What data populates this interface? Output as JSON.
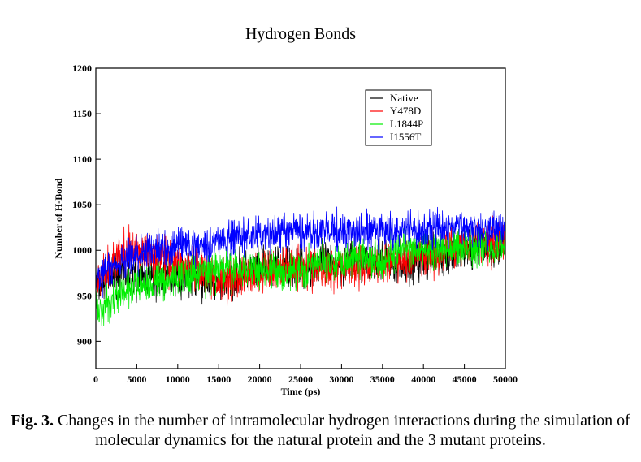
{
  "chart_data": {
    "type": "line",
    "title": "Hydrogen Bonds",
    "xlabel": "Time (ps)",
    "ylabel": "Number of H-Bond",
    "xlim": [
      0,
      50000
    ],
    "ylim": [
      870,
      1200
    ],
    "xticks": [
      0,
      5000,
      10000,
      15000,
      20000,
      25000,
      30000,
      35000,
      40000,
      45000,
      50000
    ],
    "yticks": [
      900,
      950,
      1000,
      1050,
      1100,
      1150,
      1200
    ],
    "legend_position": "top-right",
    "x": [
      0,
      2500,
      5000,
      7500,
      10000,
      12500,
      15000,
      17500,
      20000,
      22500,
      25000,
      27500,
      30000,
      32500,
      35000,
      37500,
      40000,
      42500,
      45000,
      47500,
      50000
    ],
    "series": [
      {
        "name": "Native",
        "color": "#000000",
        "values": [
          960,
          975,
          970,
          968,
          975,
          968,
          962,
          975,
          978,
          985,
          980,
          985,
          985,
          990,
          990,
          985,
          990,
          992,
          1000,
          1005,
          1005
        ]
      },
      {
        "name": "Y478D",
        "color": "#ff0000",
        "values": [
          960,
          990,
          1000,
          995,
          985,
          975,
          968,
          970,
          975,
          980,
          985,
          975,
          985,
          980,
          985,
          990,
          990,
          1000,
          1010,
          1010,
          1010
        ]
      },
      {
        "name": "L1844P",
        "color": "#00ee00",
        "values": [
          930,
          950,
          960,
          965,
          970,
          975,
          978,
          980,
          982,
          975,
          980,
          985,
          990,
          995,
          990,
          1000,
          1000,
          1000,
          1005,
          1005,
          1005
        ]
      },
      {
        "name": "I1556T",
        "color": "#0000ff",
        "values": [
          970,
          985,
          995,
          1000,
          1005,
          1005,
          1010,
          1015,
          1015,
          1020,
          1020,
          1020,
          1020,
          1020,
          1022,
          1020,
          1022,
          1025,
          1025,
          1025,
          1025
        ]
      }
    ]
  },
  "caption": {
    "label": "Fig. 3.",
    "text": " Changes in the number of intramolecular hydrogen interactions during the simulation of molecular dynamics for the natural protein and the 3 mutant proteins."
  }
}
